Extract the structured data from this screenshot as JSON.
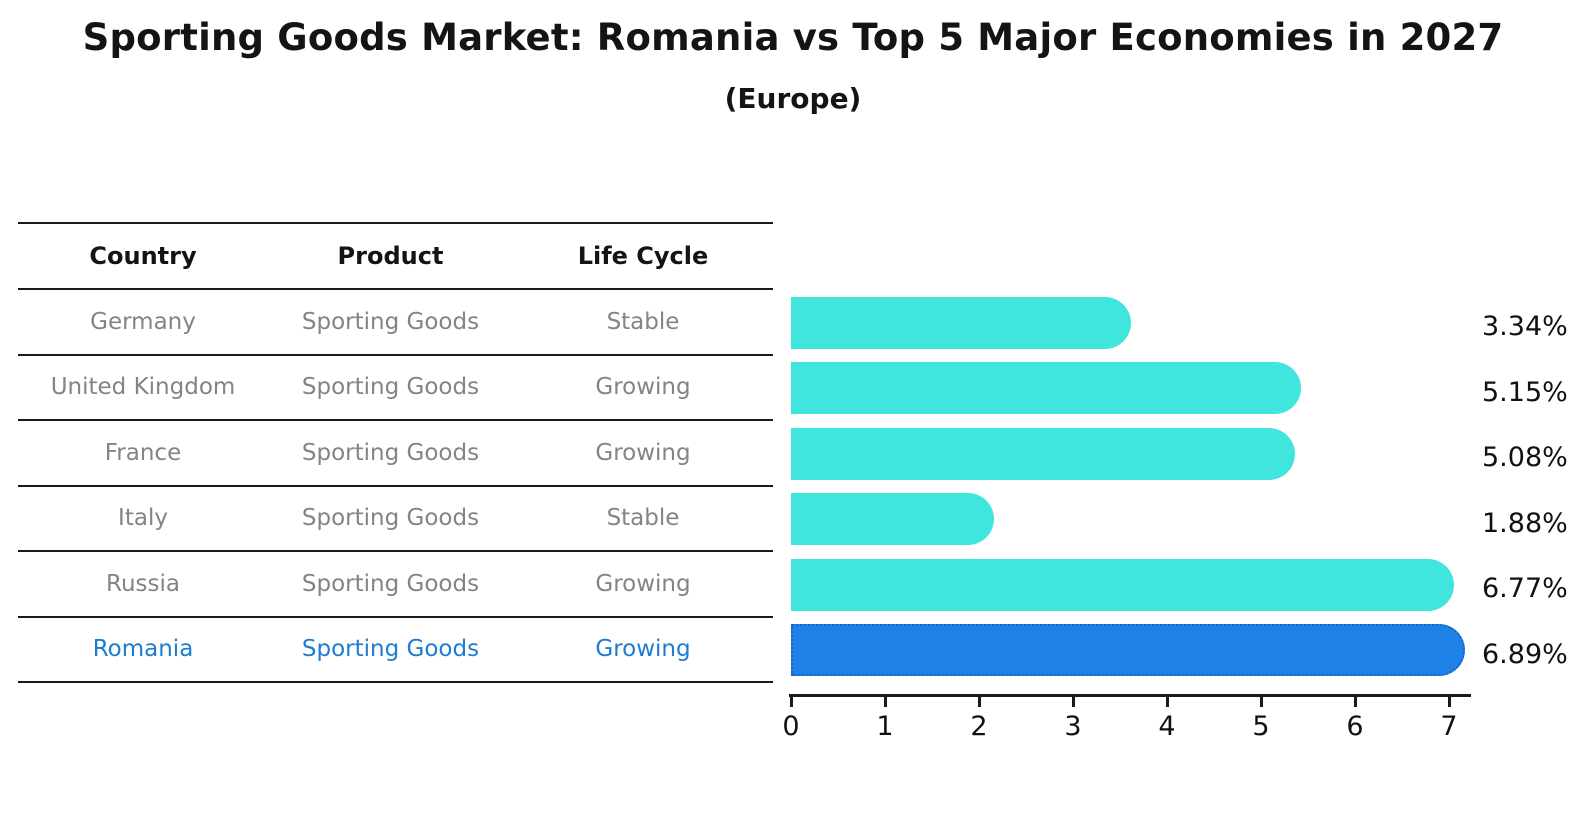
{
  "title": "Sporting Goods Market: Romania vs Top 5 Major Economies in 2027",
  "subtitle": "(Europe)",
  "table": {
    "headers": [
      "Country",
      "Product",
      "Life Cycle"
    ],
    "rows": [
      {
        "country": "Germany",
        "product": "Sporting Goods",
        "life_cycle": "Stable",
        "highlighted": false
      },
      {
        "country": "United Kingdom",
        "product": "Sporting Goods",
        "life_cycle": "Growing",
        "highlighted": false
      },
      {
        "country": "France",
        "product": "Sporting Goods",
        "life_cycle": "Growing",
        "highlighted": false
      },
      {
        "country": "Italy",
        "product": "Sporting Goods",
        "life_cycle": "Stable",
        "highlighted": false
      },
      {
        "country": "Russia",
        "product": "Sporting Goods",
        "life_cycle": "Growing",
        "highlighted": false
      },
      {
        "country": "Romania",
        "product": "Sporting Goods",
        "life_cycle": "Growing",
        "highlighted": true
      }
    ]
  },
  "chart_data": {
    "type": "bar",
    "orientation": "horizontal",
    "title": "Sporting Goods Market: Romania vs Top 5 Major Economies in 2027",
    "subtitle": "(Europe)",
    "categories": [
      "Germany",
      "United Kingdom",
      "France",
      "Italy",
      "Russia",
      "Romania"
    ],
    "values": [
      3.34,
      5.15,
      5.08,
      1.88,
      6.77,
      6.89
    ],
    "value_labels": [
      "3.34%",
      "5.15%",
      "5.08%",
      "1.88%",
      "6.77%",
      "6.89%"
    ],
    "unit": "%",
    "xlabel": "",
    "ylabel": "",
    "xlim": [
      0,
      7.25
    ],
    "xticks": [
      "0",
      "1",
      "2",
      "3",
      "4",
      "5",
      "6",
      "7"
    ],
    "grid": false,
    "legend": false,
    "highlight_category": "Romania"
  },
  "colors": {
    "bar_default": "#40E5DE",
    "bar_highlight": "#1E82E6",
    "bar_highlight_border": "#1565C0",
    "highlight_text": "#1E7CD2",
    "muted_text": "#848484",
    "heading_text": "#141414",
    "line": "#1a1a1a"
  }
}
